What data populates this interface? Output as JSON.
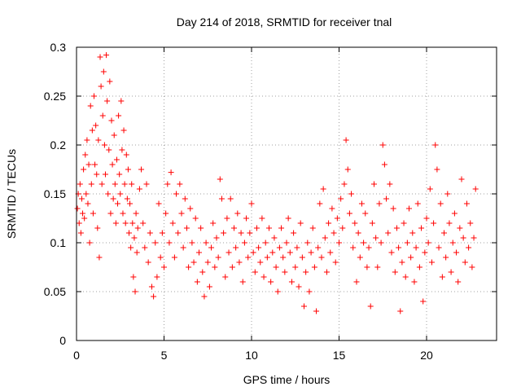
{
  "chart_data": {
    "type": "scatter",
    "title": "Day 214 of 2018, SRMTID for receiver tnal",
    "xlabel": "GPS time / hours",
    "ylabel": "SRMTID / TECUs",
    "xlim": [
      0,
      24
    ],
    "ylim": [
      0,
      0.3
    ],
    "x_ticks": [
      0,
      5,
      10,
      15,
      20
    ],
    "x_tick_labels": [
      "0",
      "5",
      "10",
      "15",
      "20"
    ],
    "y_ticks": [
      0,
      0.05,
      0.1,
      0.15,
      0.2,
      0.25,
      0.3
    ],
    "y_tick_labels": [
      "0",
      "0.05",
      "0.1",
      "0.15",
      "0.2",
      "0.25",
      "0.3"
    ],
    "grid": true,
    "marker": "+",
    "marker_color": "#ff0000",
    "series": [
      {
        "name": "SRMTID",
        "points": [
          [
            0.05,
            0.135
          ],
          [
            0.1,
            0.15
          ],
          [
            0.15,
            0.12
          ],
          [
            0.2,
            0.16
          ],
          [
            0.25,
            0.11
          ],
          [
            0.3,
            0.145
          ],
          [
            0.35,
            0.13
          ],
          [
            0.4,
            0.175
          ],
          [
            0.45,
            0.125
          ],
          [
            0.5,
            0.19
          ],
          [
            0.55,
            0.15
          ],
          [
            0.6,
            0.205
          ],
          [
            0.65,
            0.14
          ],
          [
            0.7,
            0.18
          ],
          [
            0.75,
            0.1
          ],
          [
            0.8,
            0.24
          ],
          [
            0.85,
            0.16
          ],
          [
            0.9,
            0.215
          ],
          [
            0.95,
            0.13
          ],
          [
            1.0,
            0.25
          ],
          [
            1.05,
            0.18
          ],
          [
            1.1,
            0.22
          ],
          [
            1.15,
            0.17
          ],
          [
            1.2,
            0.115
          ],
          [
            1.25,
            0.205
          ],
          [
            1.3,
            0.085
          ],
          [
            1.35,
            0.29
          ],
          [
            1.4,
            0.26
          ],
          [
            1.45,
            0.16
          ],
          [
            1.5,
            0.23
          ],
          [
            1.55,
            0.275
          ],
          [
            1.6,
            0.2
          ],
          [
            1.65,
            0.17
          ],
          [
            1.7,
            0.292
          ],
          [
            1.75,
            0.245
          ],
          [
            1.8,
            0.15
          ],
          [
            1.85,
            0.195
          ],
          [
            1.9,
            0.265
          ],
          [
            1.95,
            0.13
          ],
          [
            2.0,
            0.225
          ],
          [
            2.05,
            0.18
          ],
          [
            2.1,
            0.145
          ],
          [
            2.15,
            0.21
          ],
          [
            2.2,
            0.16
          ],
          [
            2.25,
            0.12
          ],
          [
            2.3,
            0.185
          ],
          [
            2.35,
            0.14
          ],
          [
            2.4,
            0.23
          ],
          [
            2.45,
            0.17
          ],
          [
            2.5,
            0.15
          ],
          [
            2.55,
            0.245
          ],
          [
            2.6,
            0.195
          ],
          [
            2.65,
            0.13
          ],
          [
            2.7,
            0.215
          ],
          [
            2.75,
            0.16
          ],
          [
            2.8,
            0.12
          ],
          [
            2.85,
            0.19
          ],
          [
            2.9,
            0.145
          ],
          [
            2.95,
            0.175
          ],
          [
            3.0,
            0.11
          ],
          [
            3.05,
            0.14
          ],
          [
            3.1,
            0.095
          ],
          [
            3.15,
            0.16
          ],
          [
            3.2,
            0.12
          ],
          [
            3.25,
            0.065
          ],
          [
            3.3,
            0.105
          ],
          [
            3.35,
            0.05
          ],
          [
            3.4,
            0.13
          ],
          [
            3.45,
            0.09
          ],
          [
            3.5,
            0.115
          ],
          [
            3.6,
            0.155
          ],
          [
            3.7,
            0.175
          ],
          [
            3.8,
            0.12
          ],
          [
            3.9,
            0.095
          ],
          [
            4.0,
            0.16
          ],
          [
            4.1,
            0.08
          ],
          [
            4.2,
            0.11
          ],
          [
            4.3,
            0.055
          ],
          [
            4.4,
            0.045
          ],
          [
            4.5,
            0.1
          ],
          [
            4.6,
            0.065
          ],
          [
            4.7,
            0.14
          ],
          [
            4.8,
            0.085
          ],
          [
            4.9,
            0.11
          ],
          [
            5.0,
            0.075
          ],
          [
            5.1,
            0.13
          ],
          [
            5.2,
            0.16
          ],
          [
            5.3,
            0.1
          ],
          [
            5.4,
            0.172
          ],
          [
            5.5,
            0.12
          ],
          [
            5.6,
            0.085
          ],
          [
            5.7,
            0.15
          ],
          [
            5.8,
            0.11
          ],
          [
            5.9,
            0.16
          ],
          [
            6.0,
            0.13
          ],
          [
            6.1,
            0.095
          ],
          [
            6.2,
            0.145
          ],
          [
            6.3,
            0.115
          ],
          [
            6.4,
            0.075
          ],
          [
            6.5,
            0.135
          ],
          [
            6.6,
            0.1
          ],
          [
            6.7,
            0.08
          ],
          [
            6.8,
            0.125
          ],
          [
            6.9,
            0.06
          ],
          [
            7.0,
            0.09
          ],
          [
            7.1,
            0.115
          ],
          [
            7.2,
            0.07
          ],
          [
            7.3,
            0.045
          ],
          [
            7.4,
            0.1
          ],
          [
            7.5,
            0.08
          ],
          [
            7.6,
            0.055
          ],
          [
            7.7,
            0.095
          ],
          [
            7.8,
            0.12
          ],
          [
            7.9,
            0.075
          ],
          [
            8.0,
            0.105
          ],
          [
            8.1,
            0.085
          ],
          [
            8.2,
            0.165
          ],
          [
            8.3,
            0.145
          ],
          [
            8.4,
            0.11
          ],
          [
            8.5,
            0.065
          ],
          [
            8.6,
            0.125
          ],
          [
            8.7,
            0.09
          ],
          [
            8.8,
            0.145
          ],
          [
            8.9,
            0.075
          ],
          [
            9.0,
            0.115
          ],
          [
            9.1,
            0.095
          ],
          [
            9.2,
            0.13
          ],
          [
            9.3,
            0.08
          ],
          [
            9.4,
            0.11
          ],
          [
            9.5,
            0.06
          ],
          [
            9.6,
            0.1
          ],
          [
            9.7,
            0.125
          ],
          [
            9.8,
            0.085
          ],
          [
            9.9,
            0.11
          ],
          [
            10.0,
            0.14
          ],
          [
            10.1,
            0.09
          ],
          [
            10.2,
            0.07
          ],
          [
            10.3,
            0.115
          ],
          [
            10.4,
            0.095
          ],
          [
            10.5,
            0.08
          ],
          [
            10.6,
            0.125
          ],
          [
            10.7,
            0.065
          ],
          [
            10.8,
            0.1
          ],
          [
            10.9,
            0.085
          ],
          [
            11.0,
            0.115
          ],
          [
            11.1,
            0.06
          ],
          [
            11.2,
            0.09
          ],
          [
            11.3,
            0.105
          ],
          [
            11.4,
            0.075
          ],
          [
            11.5,
            0.05
          ],
          [
            11.6,
            0.095
          ],
          [
            11.7,
            0.115
          ],
          [
            11.8,
            0.085
          ],
          [
            11.9,
            0.07
          ],
          [
            12.0,
            0.1
          ],
          [
            12.1,
            0.125
          ],
          [
            12.2,
            0.09
          ],
          [
            12.3,
            0.06
          ],
          [
            12.4,
            0.11
          ],
          [
            12.5,
            0.075
          ],
          [
            12.6,
            0.095
          ],
          [
            12.7,
            0.055
          ],
          [
            12.8,
            0.12
          ],
          [
            12.9,
            0.085
          ],
          [
            13.0,
            0.035
          ],
          [
            13.1,
            0.07
          ],
          [
            13.2,
            0.1
          ],
          [
            13.3,
            0.05
          ],
          [
            13.4,
            0.09
          ],
          [
            13.5,
            0.115
          ],
          [
            13.6,
            0.075
          ],
          [
            13.7,
            0.03
          ],
          [
            13.8,
            0.095
          ],
          [
            13.9,
            0.14
          ],
          [
            14.0,
            0.085
          ],
          [
            14.1,
            0.155
          ],
          [
            14.2,
            0.105
          ],
          [
            14.3,
            0.07
          ],
          [
            14.4,
            0.12
          ],
          [
            14.5,
            0.09
          ],
          [
            14.6,
            0.135
          ],
          [
            14.7,
            0.11
          ],
          [
            14.8,
            0.08
          ],
          [
            14.9,
            0.125
          ],
          [
            15.0,
            0.1
          ],
          [
            15.1,
            0.145
          ],
          [
            15.2,
            0.115
          ],
          [
            15.3,
            0.16
          ],
          [
            15.4,
            0.205
          ],
          [
            15.5,
            0.175
          ],
          [
            15.6,
            0.13
          ],
          [
            15.7,
            0.15
          ],
          [
            15.8,
            0.095
          ],
          [
            15.9,
            0.12
          ],
          [
            16.0,
            0.06
          ],
          [
            16.1,
            0.11
          ],
          [
            16.2,
            0.085
          ],
          [
            16.3,
            0.14
          ],
          [
            16.4,
            0.1
          ],
          [
            16.5,
            0.13
          ],
          [
            16.6,
            0.075
          ],
          [
            16.7,
            0.095
          ],
          [
            16.8,
            0.035
          ],
          [
            16.9,
            0.12
          ],
          [
            17.0,
            0.16
          ],
          [
            17.1,
            0.105
          ],
          [
            17.2,
            0.075
          ],
          [
            17.3,
            0.14
          ],
          [
            17.4,
            0.1
          ],
          [
            17.5,
            0.2
          ],
          [
            17.6,
            0.18
          ],
          [
            17.7,
            0.145
          ],
          [
            17.8,
            0.11
          ],
          [
            17.9,
            0.16
          ],
          [
            18.0,
            0.09
          ],
          [
            18.1,
            0.135
          ],
          [
            18.2,
            0.07
          ],
          [
            18.3,
            0.115
          ],
          [
            18.4,
            0.095
          ],
          [
            18.5,
            0.03
          ],
          [
            18.6,
            0.08
          ],
          [
            18.7,
            0.12
          ],
          [
            18.8,
            0.065
          ],
          [
            18.9,
            0.1
          ],
          [
            19.0,
            0.135
          ],
          [
            19.1,
            0.085
          ],
          [
            19.2,
            0.11
          ],
          [
            19.3,
            0.06
          ],
          [
            19.4,
            0.095
          ],
          [
            19.5,
            0.14
          ],
          [
            19.6,
            0.075
          ],
          [
            19.7,
            0.115
          ],
          [
            19.8,
            0.04
          ],
          [
            19.9,
            0.09
          ],
          [
            20.0,
            0.125
          ],
          [
            20.1,
            0.1
          ],
          [
            20.2,
            0.155
          ],
          [
            20.3,
            0.08
          ],
          [
            20.4,
            0.12
          ],
          [
            20.5,
            0.2
          ],
          [
            20.6,
            0.175
          ],
          [
            20.7,
            0.095
          ],
          [
            20.8,
            0.14
          ],
          [
            20.9,
            0.065
          ],
          [
            21.0,
            0.11
          ],
          [
            21.1,
            0.085
          ],
          [
            21.2,
            0.15
          ],
          [
            21.3,
            0.12
          ],
          [
            21.4,
            0.07
          ],
          [
            21.5,
            0.1
          ],
          [
            21.6,
            0.13
          ],
          [
            21.7,
            0.09
          ],
          [
            21.8,
            0.06
          ],
          [
            21.9,
            0.115
          ],
          [
            22.0,
            0.165
          ],
          [
            22.1,
            0.105
          ],
          [
            22.2,
            0.08
          ],
          [
            22.3,
            0.14
          ],
          [
            22.4,
            0.095
          ],
          [
            22.5,
            0.12
          ],
          [
            22.6,
            0.075
          ],
          [
            22.7,
            0.105
          ],
          [
            22.8,
            0.155
          ]
        ]
      }
    ]
  }
}
